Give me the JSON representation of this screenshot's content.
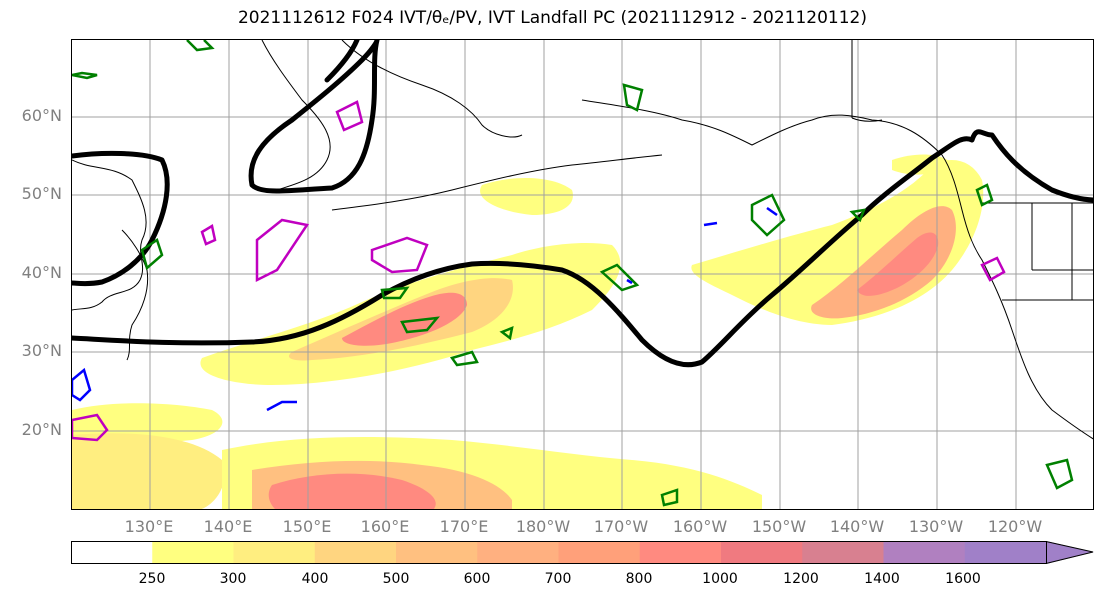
{
  "title": "2021112612 F024 IVT/θₑ/PV, IVT Landfall PC (2021112912 - 2021120112)",
  "lat_labels": [
    "60°N",
    "50°N",
    "40°N",
    "30°N",
    "20°N"
  ],
  "lon_labels": [
    "130°E",
    "140°E",
    "150°E",
    "160°E",
    "170°E",
    "180°W",
    "170°W",
    "160°W",
    "150°W",
    "140°W",
    "130°W",
    "120°W"
  ],
  "colorbar": {
    "levels": [
      "250",
      "300",
      "400",
      "500",
      "600",
      "700",
      "800",
      "1000",
      "1200",
      "1400",
      "1600"
    ],
    "colors": [
      "#ffffff",
      "#ffff80",
      "#ffee80",
      "#ffd580",
      "#ffc080",
      "#ffb080",
      "#ffa07a",
      "#ff8a80",
      "#f07a80",
      "#d88090",
      "#b080c0",
      "#a080c8"
    ]
  },
  "colors": {
    "theta_contour": "#000000",
    "pv_green": "#008000",
    "pv_purple": "#c000c0",
    "pv_blue": "#0000ff",
    "grid": "#a0a0a0"
  }
}
